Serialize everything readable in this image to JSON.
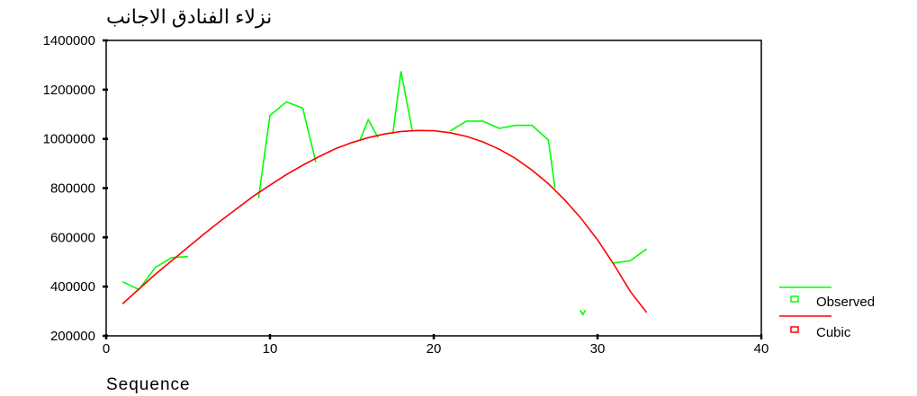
{
  "chart_data": {
    "type": "line",
    "title": "نزلاء الفنادق الاجانب",
    "xlabel": "Sequence",
    "ylabel": "",
    "xlim": [
      0,
      40
    ],
    "ylim": [
      200000,
      1400000
    ],
    "xticks": [
      0,
      10,
      20,
      30,
      40
    ],
    "yticks": [
      200000,
      400000,
      600000,
      800000,
      1000000,
      1200000,
      1400000
    ],
    "xtick_labels": [
      "0",
      "10",
      "20",
      "30",
      "40"
    ],
    "ytick_labels": [
      "200000",
      "400000",
      "600000",
      "800000",
      "1000000",
      "1200000",
      "1400000"
    ],
    "grid": false,
    "legend_position": "bottom-right",
    "series": [
      {
        "name": "Observed",
        "color": "#00ff00",
        "segments": [
          [
            [
              1,
              420000
            ],
            [
              2,
              388000
            ],
            [
              3,
              478000
            ],
            [
              4,
              518000
            ],
            [
              5,
              522000
            ]
          ],
          [
            [
              9.3,
              760000
            ],
            [
              10,
              1095000
            ],
            [
              11,
              1150000
            ],
            [
              12,
              1125000
            ],
            [
              12.8,
              905000
            ]
          ],
          [
            [
              15.5,
              995000
            ],
            [
              16,
              1078000
            ],
            [
              16.6,
              1005000
            ]
          ],
          [
            [
              17.5,
              1020000
            ],
            [
              18,
              1275000
            ],
            [
              18.7,
              1030000
            ]
          ],
          [
            [
              21,
              1032000
            ],
            [
              22,
              1072000
            ],
            [
              23,
              1072000
            ],
            [
              24,
              1043000
            ],
            [
              25,
              1055000
            ],
            [
              26,
              1055000
            ],
            [
              27,
              995000
            ],
            [
              27.4,
              800000
            ]
          ],
          [
            [
              31,
              496000
            ],
            [
              32,
              505000
            ],
            [
              33,
              553000
            ]
          ]
        ],
        "markers": [
          [
            29.1,
            290000
          ]
        ]
      },
      {
        "name": "Cubic",
        "color": "#ff0000",
        "points": [
          [
            1,
            330000
          ],
          [
            2,
            390000
          ],
          [
            3,
            450000
          ],
          [
            4,
            505000
          ],
          [
            5,
            560000
          ],
          [
            6,
            615000
          ],
          [
            7,
            668000
          ],
          [
            8,
            718000
          ],
          [
            9,
            768000
          ],
          [
            10,
            812000
          ],
          [
            11,
            855000
          ],
          [
            12,
            893000
          ],
          [
            13,
            928000
          ],
          [
            14,
            960000
          ],
          [
            15,
            985000
          ],
          [
            16,
            1005000
          ],
          [
            17,
            1020000
          ],
          [
            18,
            1030000
          ],
          [
            19,
            1034000
          ],
          [
            20,
            1033000
          ],
          [
            21,
            1025000
          ],
          [
            22,
            1010000
          ],
          [
            23,
            988000
          ],
          [
            24,
            958000
          ],
          [
            25,
            920000
          ],
          [
            26,
            873000
          ],
          [
            27,
            818000
          ],
          [
            28,
            752000
          ],
          [
            29,
            677000
          ],
          [
            30,
            590000
          ],
          [
            31,
            490000
          ],
          [
            32,
            380000
          ],
          [
            33,
            295000
          ]
        ]
      }
    ]
  }
}
